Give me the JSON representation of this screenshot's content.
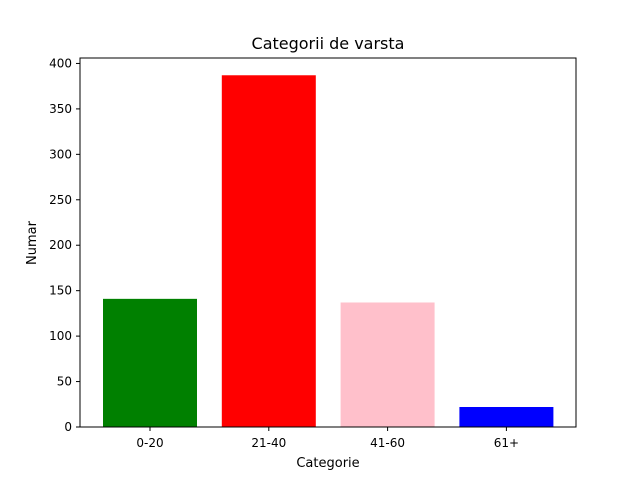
{
  "chart_data": {
    "type": "bar",
    "title": "Categorii de varsta",
    "xlabel": "Categorie",
    "ylabel": "Numar",
    "categories": [
      "0-20",
      "21-40",
      "41-60",
      "61+"
    ],
    "values": [
      141,
      387,
      137,
      22
    ],
    "colors": [
      "#008000",
      "#ff0000",
      "#ffc0cb",
      "#0000ff"
    ],
    "ylim": [
      0,
      406
    ],
    "yticks": [
      0,
      50,
      100,
      150,
      200,
      250,
      300,
      350,
      400
    ],
    "grid": false,
    "legend": "none"
  }
}
